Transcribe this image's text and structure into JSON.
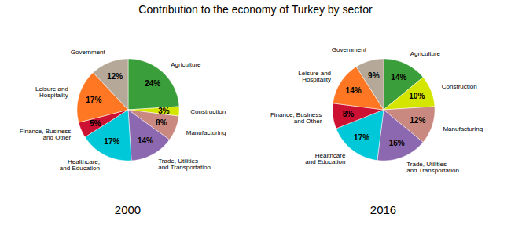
{
  "chart_data": [
    {
      "type": "pie",
      "title": "Contribution to the economy of Turkey by sector",
      "xlabel": "2000",
      "categories": [
        "Agriculture",
        "Construction",
        "Manufacturing",
        "Trade, Utilities\nand Transportation",
        "Healthcare,\nand Education",
        "Finance, Business\nand Other",
        "Leisure and\nHospitality",
        "Government"
      ],
      "values": [
        24,
        3,
        8,
        14,
        17,
        5,
        17,
        12
      ],
      "value_labels": [
        "24%",
        "3%",
        "8%",
        "14%",
        "17%",
        "5%",
        "17%",
        "12%"
      ],
      "colors": [
        "#3a9e3a",
        "#d4e600",
        "#c98880",
        "#8b68b0",
        "#00c8d8",
        "#cc1133",
        "#ff7722",
        "#b5a898"
      ],
      "data_labels": true
    },
    {
      "type": "pie",
      "xlabel": "2016",
      "categories": [
        "Agriculture",
        "Construction",
        "Manufacturing",
        "Trade, Utilities\nand Transportation",
        "Healthcare\nand Education",
        "Finance, Business\nand Other",
        "Leisure and\nHospitality",
        "Government"
      ],
      "values": [
        14,
        10,
        12,
        16,
        17,
        8,
        14,
        9
      ],
      "value_labels": [
        "14%",
        "10%",
        "12%",
        "16%",
        "17%",
        "8%",
        "14%",
        "9%"
      ],
      "colors": [
        "#3a9e3a",
        "#d4e600",
        "#c98880",
        "#8b68b0",
        "#00c8d8",
        "#cc1133",
        "#ff7722",
        "#b5a898"
      ],
      "data_labels": true
    }
  ]
}
